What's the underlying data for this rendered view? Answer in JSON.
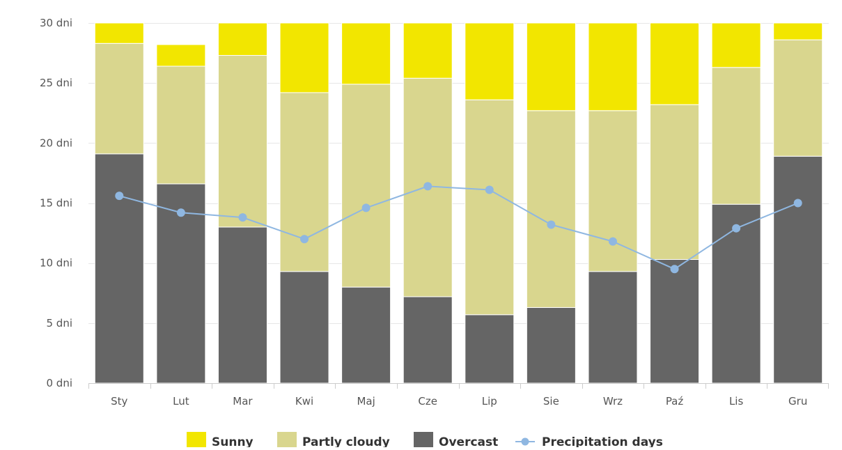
{
  "chart_data": {
    "type": "bar",
    "stacked": true,
    "categories": [
      "Sty",
      "Lut",
      "Mar",
      "Kwi",
      "Maj",
      "Cze",
      "Lip",
      "Sie",
      "Wrz",
      "Paź",
      "Lis",
      "Gru"
    ],
    "y_tick_labels": [
      "0 dni",
      "5 dni",
      "10 dni",
      "15 dni",
      "20 dni",
      "25 dni",
      "30 dni"
    ],
    "y_ticks": [
      0,
      5,
      10,
      15,
      20,
      25,
      30
    ],
    "ylim": [
      0,
      30
    ],
    "grid": "horizontal",
    "legend_position": "bottom",
    "series": [
      {
        "name": "Overcast",
        "kind": "bar",
        "color": "#656565",
        "values": [
          19.1,
          16.6,
          13.0,
          9.3,
          8.0,
          7.2,
          5.7,
          6.3,
          9.3,
          10.3,
          14.9,
          18.9
        ]
      },
      {
        "name": "Partly cloudy",
        "kind": "bar",
        "color": "#d9d68e",
        "values": [
          9.2,
          9.8,
          14.3,
          14.9,
          16.9,
          18.2,
          17.9,
          16.4,
          13.4,
          12.9,
          11.4,
          9.7
        ]
      },
      {
        "name": "Sunny",
        "kind": "bar",
        "color": "#f2e600",
        "values": [
          1.7,
          1.8,
          2.7,
          5.8,
          5.1,
          4.6,
          6.4,
          7.3,
          7.3,
          6.8,
          3.7,
          1.4
        ]
      },
      {
        "name": "Precipitation days",
        "kind": "line",
        "color": "#8fb7e1",
        "values": [
          15.6,
          14.2,
          13.8,
          12.0,
          14.6,
          16.4,
          16.1,
          13.2,
          11.8,
          9.5,
          12.9,
          15.0
        ]
      }
    ],
    "legend": [
      {
        "label": "Sunny",
        "color": "#f2e600",
        "symbol": "square"
      },
      {
        "label": "Partly cloudy",
        "color": "#d9d68e",
        "symbol": "square"
      },
      {
        "label": "Overcast",
        "color": "#656565",
        "symbol": "square"
      },
      {
        "label": "Precipitation days",
        "color": "#8fb7e1",
        "symbol": "line-dot"
      }
    ],
    "colors": {
      "grid": "#e6e6e6",
      "axis": "#cccccc",
      "tick_text": "#555555",
      "legend_text": "#333333",
      "background": "#ffffff"
    }
  }
}
